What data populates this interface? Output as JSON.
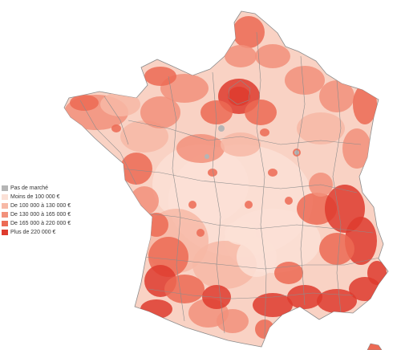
{
  "legend": {
    "items": [
      {
        "label": "Pas de marché",
        "color": "#b5b5b5"
      },
      {
        "label": "Moins de 100 000 €",
        "color": "#fbe0d6"
      },
      {
        "label": "De 100 000 à 130 000 €",
        "color": "#f7b9a6"
      },
      {
        "label": "De 130 000 à 165 000 €",
        "color": "#f2917b"
      },
      {
        "label": "De 165 000 à 220 000 €",
        "color": "#ec6a54"
      },
      {
        "label": "Plus de 220 000 €",
        "color": "#de3b2e"
      }
    ]
  },
  "colors": {
    "background": "#ffffff",
    "boundary": "#8c8c8c"
  }
}
